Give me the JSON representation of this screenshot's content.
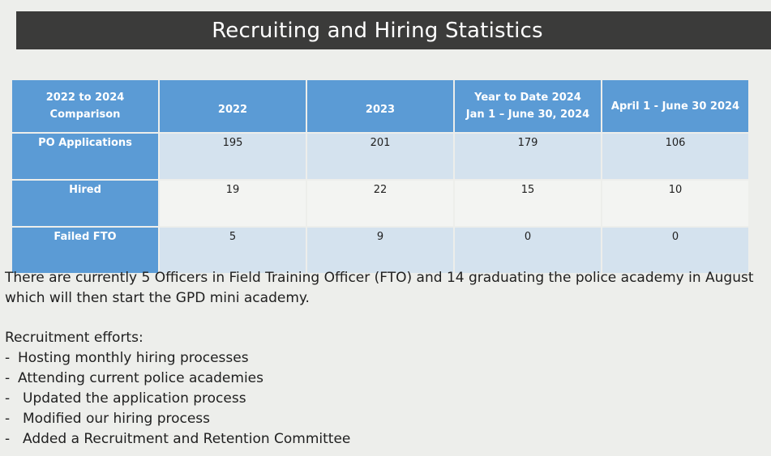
{
  "slide": {
    "title": "Recruiting and Hiring Statistics"
  },
  "table": {
    "headers": [
      [
        "2022 to 2024",
        "Comparison"
      ],
      [
        "2022"
      ],
      [
        "2023"
      ],
      [
        "Year to Date 2024",
        "Jan 1 – June 30, 2024"
      ],
      [
        "April 1 - June 30 2024"
      ]
    ],
    "rows": [
      {
        "label": "PO Applications",
        "values": [
          "195",
          "201",
          "179",
          "106"
        ]
      },
      {
        "label": "Hired",
        "values": [
          "19",
          "22",
          "15",
          "10"
        ]
      },
      {
        "label": "Failed FTO",
        "values": [
          "5",
          "9",
          "0",
          "0"
        ]
      }
    ]
  },
  "notes": {
    "paragraph": "There are currently 5 Officers in Field Training Officer (FTO) and 14 graduating the police academy in August which will then start the GPD mini academy.",
    "efforts_heading": "Recruitment efforts:",
    "efforts": [
      "Hosting monthly hiring processes",
      "Attending current police academies",
      "Updated the application process",
      "Modified our hiring process",
      "Added a Recruitment and Retention Committee"
    ]
  }
}
